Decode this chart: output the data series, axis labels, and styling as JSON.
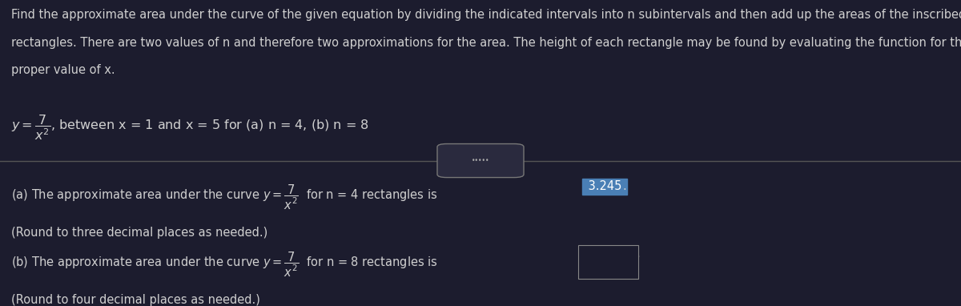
{
  "background_color": "#1c1c2e",
  "text_color": "#d0d0d0",
  "highlight_color": "#3d85c8",
  "answer_box_border": "#888888",
  "divider_color": "#555555",
  "paragraph_line1": "Find the approximate area under the curve of the given equation by dividing the indicated intervals into n subintervals and then add up the areas of the inscribed",
  "paragraph_line2": "rectangles. There are two values of n and therefore two approximations for the area. The height of each rectangle may be found by evaluating the function for the",
  "paragraph_line3": "proper value of x.",
  "part_a_prefix": "(a) The approximate area under the curve y =",
  "part_a_suffix": "for n = 4 rectangles is",
  "part_a_answer": "3.245",
  "part_a_note": "(Round to three decimal places as needed.)",
  "part_b_prefix": "(b) The approximate area under the curve y =",
  "part_b_suffix": "for n = 8 rectangles is",
  "part_b_note": "(Round to four decimal places as needed.)",
  "eq_between": ", between x = 1 and x = 5 for (a) n = 4, (b) n = 8",
  "font_size_para": 10.5,
  "font_size_eq": 11.5,
  "font_size_parts": 10.5
}
